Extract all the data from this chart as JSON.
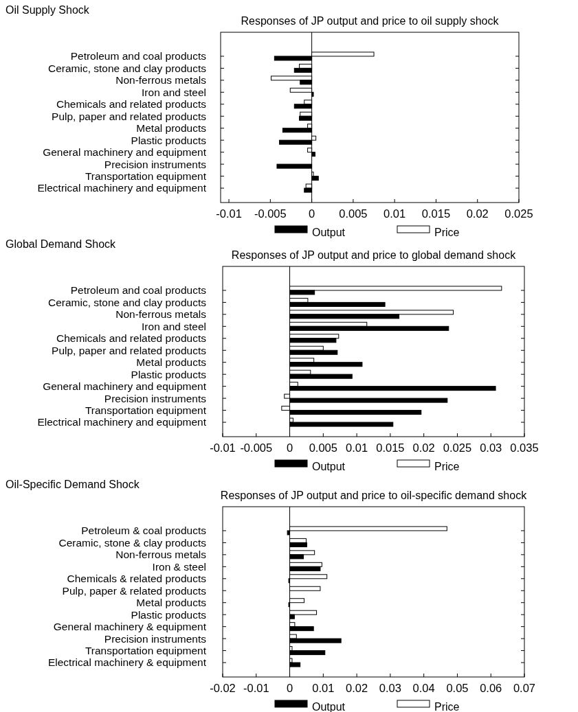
{
  "chart_data": [
    {
      "type": "bar",
      "orientation": "horizontal",
      "title": "Oil Supply Shock",
      "subtitle": "Responses of JP output and price to oil supply shock",
      "categories": [
        "Petroleum and coal products",
        "Ceramic, stone and clay products",
        "Non-ferrous metals",
        "Iron and steel",
        "Chemicals and related products",
        "Pulp, paper and related products",
        "Metal products",
        "Plastic products",
        "General machinery and equipment",
        "Precision instruments",
        "Transportation equipment",
        "Electrical machinery and equipment"
      ],
      "series": [
        {
          "name": "Price",
          "color": "#ffffff",
          "values": [
            0.0075,
            -0.0015,
            -0.0049,
            -0.0026,
            -0.0009,
            -0.0014,
            -0.0005,
            0.0005,
            -0.0005,
            0.0,
            0.0002,
            -0.0007
          ]
        },
        {
          "name": "Output",
          "color": "#000000",
          "values": [
            -0.0045,
            -0.0021,
            -0.0014,
            0.0002,
            -0.0021,
            -0.0015,
            -0.0035,
            -0.0039,
            0.0004,
            -0.0042,
            0.0008,
            -0.0009
          ]
        }
      ],
      "xlim": [
        -0.011,
        0.025
      ],
      "xticks": [
        -0.01,
        -0.005,
        0,
        0.005,
        0.01,
        0.015,
        0.02,
        0.025
      ],
      "legend": "bottom"
    },
    {
      "type": "bar",
      "orientation": "horizontal",
      "title": "Global Demand Shock",
      "subtitle": "Responses of JP output and price to global demand shock",
      "categories": [
        "Petroleum and coal products",
        "Ceramic, stone and clay products",
        "Non-ferrous metals",
        "Iron and steel",
        "Chemicals and related products",
        "Pulp, paper and related products",
        "Metal products",
        "Plastic products",
        "General machinery and equipment",
        "Precision instruments",
        "Transportation equipment",
        "Electrical machinery and equipment"
      ],
      "series": [
        {
          "name": "Price",
          "color": "#ffffff",
          "values": [
            0.0316,
            0.0027,
            0.0244,
            0.0115,
            0.0073,
            0.005,
            0.0036,
            0.0031,
            0.0012,
            -0.0008,
            -0.0012,
            0.0005
          ]
        },
        {
          "name": "Output",
          "color": "#000000",
          "values": [
            0.0037,
            0.0142,
            0.0163,
            0.0237,
            0.0069,
            0.0071,
            0.0108,
            0.0093,
            0.0307,
            0.0235,
            0.0196,
            0.0154
          ]
        }
      ],
      "xlim": [
        -0.01,
        0.035
      ],
      "xticks": [
        -0.01,
        -0.005,
        0,
        0.005,
        0.01,
        0.015,
        0.02,
        0.025,
        0.03,
        0.035
      ],
      "legend": "bottom"
    },
    {
      "type": "bar",
      "orientation": "horizontal",
      "title": "Oil-Specific Demand Shock",
      "subtitle": "Responses of JP output and price to oil-specific demand shock",
      "categories": [
        "Petroleum & coal products",
        "Ceramic, stone & clay products",
        "Non-ferrous metals",
        "Iron & steel",
        "Chemicals & related products",
        "Pulp, paper & related products",
        "Metal products",
        "Plastic products",
        "General machinery & equipment",
        "Precision instruments",
        "Transportation equipment",
        "Electrical machinery & equipment"
      ],
      "series": [
        {
          "name": "Price",
          "color": "#ffffff",
          "values": [
            0.0469,
            0.0049,
            0.0074,
            0.0096,
            0.0111,
            0.0091,
            0.0043,
            0.008,
            0.0015,
            0.002,
            0.0007,
            0.0007
          ]
        },
        {
          "name": "Output",
          "color": "#000000",
          "values": [
            -0.0007,
            0.0051,
            0.0041,
            0.0091,
            -0.0003,
            0.0,
            -0.0003,
            0.0014,
            0.0071,
            0.0153,
            0.0105,
            0.0031
          ]
        }
      ],
      "xlim": [
        -0.02,
        0.07
      ],
      "xticks": [
        -0.02,
        -0.01,
        0,
        0.01,
        0.02,
        0.03,
        0.04,
        0.05,
        0.06,
        0.07
      ],
      "legend": "bottom"
    }
  ]
}
